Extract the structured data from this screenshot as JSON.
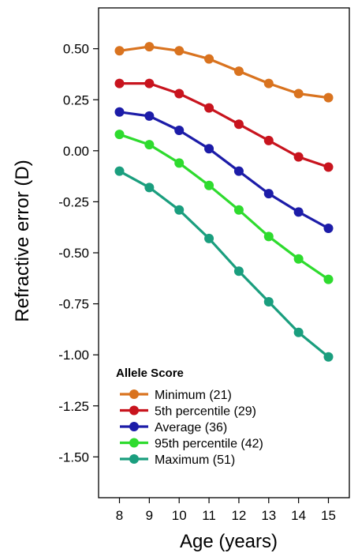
{
  "chart_data": {
    "type": "line",
    "title": "",
    "xlabel": "Age (years)",
    "ylabel": "Refractive error (D)",
    "x": [
      8,
      9,
      10,
      11,
      12,
      13,
      14,
      15
    ],
    "x_ticks": [
      "8",
      "9",
      "10",
      "11",
      "12",
      "13",
      "14",
      "15"
    ],
    "y_ticks": [
      "0.50",
      "0.25",
      "0.00",
      "-0.25",
      "-0.50",
      "-0.75",
      "-1.00",
      "-1.25",
      "-1.50"
    ],
    "y_tick_values": [
      0.5,
      0.25,
      0,
      -0.25,
      -0.5,
      -0.75,
      -1.0,
      -1.25,
      -1.5
    ],
    "xlim": [
      7.3,
      15.7
    ],
    "ylim": [
      -1.7,
      0.7
    ],
    "grid": false,
    "legend": {
      "title": "Allele Score",
      "placement": "bottom-left"
    },
    "series": [
      {
        "name": "Minimum (21)",
        "color": "#D9731F",
        "values": [
          0.49,
          0.51,
          0.49,
          0.45,
          0.39,
          0.33,
          0.28,
          0.26
        ]
      },
      {
        "name": "5th percentile (29)",
        "color": "#C8141E",
        "values": [
          0.33,
          0.33,
          0.28,
          0.21,
          0.13,
          0.05,
          -0.03,
          -0.08
        ]
      },
      {
        "name": "Average (36)",
        "color": "#1C1CA8",
        "values": [
          0.19,
          0.17,
          0.1,
          0.01,
          -0.1,
          -0.21,
          -0.3,
          -0.38
        ]
      },
      {
        "name": "95th percentile (42)",
        "color": "#2EDB2E",
        "values": [
          0.08,
          0.03,
          -0.06,
          -0.17,
          -0.29,
          -0.42,
          -0.53,
          -0.63
        ]
      },
      {
        "name": "Maximum (51)",
        "color": "#1A9E7E",
        "values": [
          -0.1,
          -0.18,
          -0.29,
          -0.43,
          -0.59,
          -0.74,
          -0.89,
          -1.01
        ]
      }
    ]
  }
}
